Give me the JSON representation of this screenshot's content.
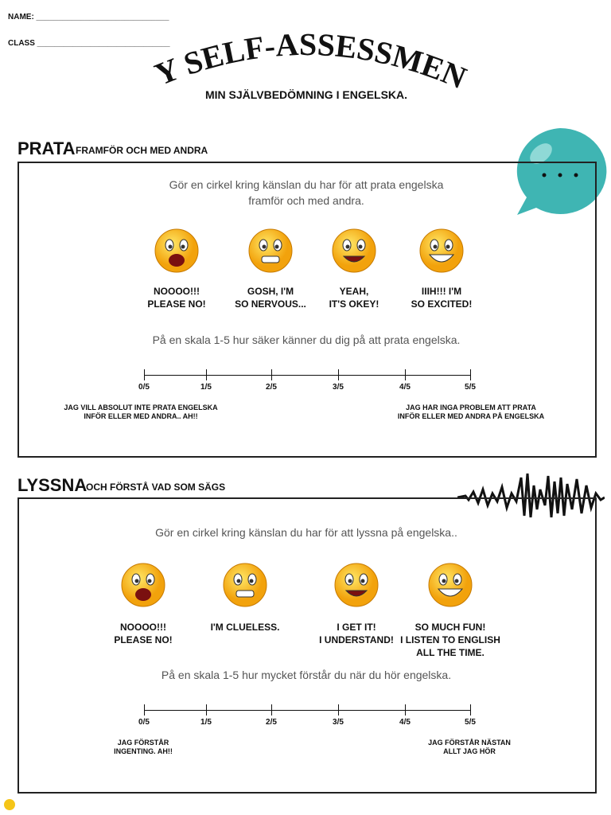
{
  "header": {
    "name_label": "NAME:",
    "class_label": "CLASS",
    "title": "MY SELF-ASSESSMENT",
    "subtitle": "MIN SJÄLVBEDÖMNING I ENGELSKA."
  },
  "sections": [
    {
      "heading": "PRATA",
      "heading_sub": "FRAMFÖR OCH MED ANDRA",
      "instruction": [
        "Gör en cirkel kring känslan du har för att prata engelska",
        "framför och med andra."
      ],
      "emotions": [
        [
          "NOOOO!!!",
          "PLEASE NO!"
        ],
        [
          "GOSH, I'M",
          "SO NERVOUS..."
        ],
        [
          "YEAH,",
          "IT'S OKEY!"
        ],
        [
          "IIIH!!! I'M",
          "SO EXCITED!"
        ]
      ],
      "scale_prompt": "På en skala 1-5 hur säker känner du dig på att prata engelska.",
      "scale_ticks": [
        "0/5",
        "1/5",
        "2/5",
        "3/5",
        "4/5",
        "5/5"
      ],
      "scale_low": [
        "JAG VILL ABSOLUT INTE PRATA ENGELSKA",
        "INFÖR ELLER MED ANDRA.. AH!!"
      ],
      "scale_high": [
        "JAG HAR INGA PROBLEM ATT PRATA",
        "INFÖR ELLER MED ANDRA PÅ ENGELSKA"
      ]
    },
    {
      "heading": "LYSSNA",
      "heading_sub": "OCH FÖRSTÅ VAD SOM SÄGS",
      "instruction": [
        "Gör en cirkel kring känslan du har för att lyssna på engelska.."
      ],
      "emotions": [
        [
          "NOOOO!!!",
          "PLEASE NO!"
        ],
        [
          "I'M CLUELESS."
        ],
        [
          "I GET IT!",
          "I UNDERSTAND!"
        ],
        [
          "SO MUCH FUN!",
          "I LISTEN TO ENGLISH",
          "ALL THE TIME."
        ]
      ],
      "scale_prompt": "På en skala 1-5 hur mycket förstår du när du hör engelska.",
      "scale_ticks": [
        "0/5",
        "1/5",
        "2/5",
        "3/5",
        "4/5",
        "5/5"
      ],
      "scale_low": [
        "JAG FÖRSTÅR",
        "INGENTING. AH!!"
      ],
      "scale_high": [
        "JAG FÖRSTÅR NÄSTAN",
        "ALLT JAG HÖR"
      ]
    }
  ]
}
